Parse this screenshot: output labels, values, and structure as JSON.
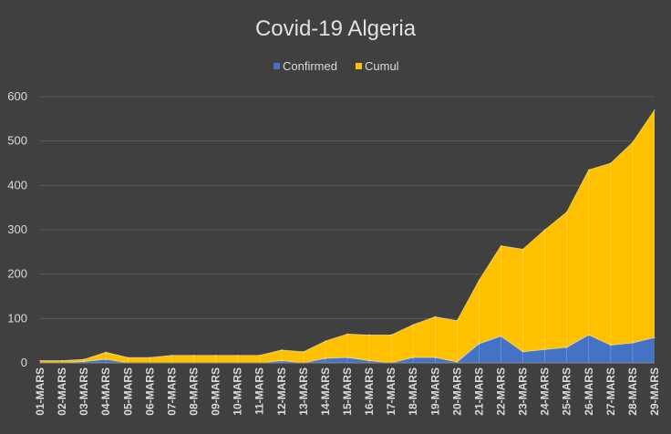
{
  "chart_data": {
    "type": "area",
    "title": "Covid-19 Algeria",
    "legend_position": "top",
    "grid": true,
    "ylim": [
      0,
      600
    ],
    "yticks": [
      0,
      100,
      200,
      300,
      400,
      500,
      600
    ],
    "categories": [
      "01-MARS",
      "02-MARS",
      "03-MARS",
      "04-MARS",
      "05-MARS",
      "06-MARS",
      "07-MARS",
      "08-MARS",
      "09-MARS",
      "10-MARS",
      "11-MARS",
      "12-MARS",
      "13-MARS",
      "14-MARS",
      "15-MARS",
      "16-MARS",
      "17-MARS",
      "18-MARS",
      "19-MARS",
      "20-MARS",
      "21-MARS",
      "22-MARS",
      "23-MARS",
      "24-MARS",
      "25-MARS",
      "26-MARS",
      "27-MARS",
      "28-MARS",
      "29-MARS"
    ],
    "series": [
      {
        "name": "Cumul",
        "color": "#FFC000",
        "values": [
          5,
          5,
          8,
          24,
          12,
          12,
          17,
          17,
          17,
          17,
          17,
          29,
          25,
          49,
          65,
          63,
          63,
          86,
          104,
          95,
          186,
          264,
          256,
          300,
          340,
          435,
          450,
          497,
          570
        ]
      },
      {
        "name": "Confirmed",
        "color": "#4472C4",
        "values": [
          0,
          0,
          3,
          8,
          0,
          0,
          0,
          0,
          0,
          0,
          0,
          5,
          0,
          10,
          12,
          5,
          0,
          12,
          12,
          2,
          43,
          60,
          25,
          30,
          35,
          63,
          40,
          45,
          57
        ]
      }
    ]
  },
  "colors": {
    "background": "#404040",
    "gridline": "#595959",
    "text": "#D9D9D9",
    "title": "#E0E0E0"
  }
}
